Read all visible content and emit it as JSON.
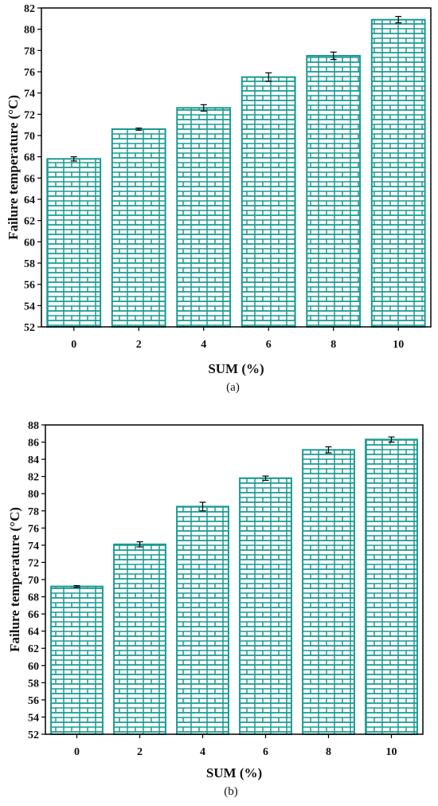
{
  "colors": {
    "bar": "#1a9a92",
    "axis": "#000000",
    "background": "#ffffff"
  },
  "chart_data": [
    {
      "panel_label": "(a)",
      "type": "bar",
      "pattern": "brick",
      "xlabel": "SUM (%)",
      "ylabel": "Failure temperature (°C)",
      "categories": [
        "0",
        "2",
        "4",
        "6",
        "8",
        "10"
      ],
      "values": [
        67.8,
        70.6,
        72.6,
        75.5,
        77.5,
        80.9
      ],
      "errors": [
        0.2,
        0.1,
        0.3,
        0.4,
        0.35,
        0.3
      ],
      "ylim": [
        52,
        82
      ],
      "yticks": [
        52,
        54,
        56,
        58,
        60,
        62,
        64,
        66,
        68,
        70,
        72,
        74,
        76,
        78,
        80,
        82
      ],
      "grid": false,
      "legend": false
    },
    {
      "panel_label": "(b)",
      "type": "bar",
      "pattern": "brick",
      "xlabel": "SUM (%)",
      "ylabel": "Failure temperature (°C)",
      "categories": [
        "0",
        "2",
        "4",
        "6",
        "8",
        "10"
      ],
      "values": [
        69.2,
        74.1,
        78.5,
        81.8,
        85.1,
        86.3
      ],
      "errors": [
        0.1,
        0.3,
        0.5,
        0.25,
        0.35,
        0.3
      ],
      "ylim": [
        52,
        88
      ],
      "yticks": [
        52,
        54,
        56,
        58,
        60,
        62,
        64,
        66,
        68,
        70,
        72,
        74,
        76,
        78,
        80,
        82,
        84,
        86,
        88
      ],
      "grid": false,
      "legend": false
    }
  ]
}
